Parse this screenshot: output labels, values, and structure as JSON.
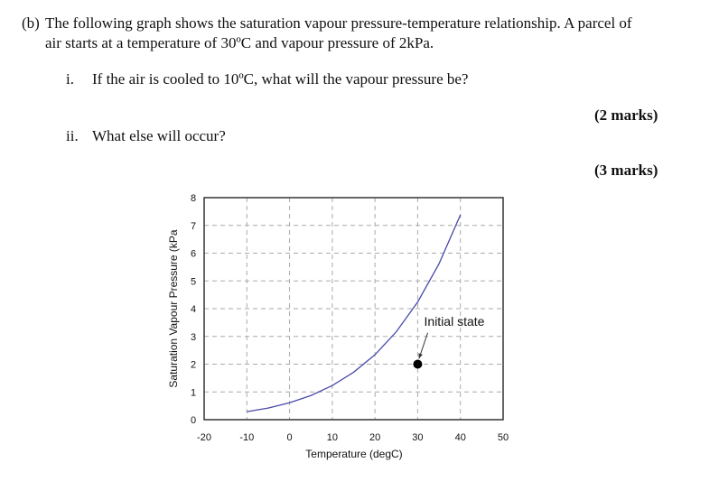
{
  "question": {
    "part_label": "(b)",
    "intro_line1": "The following graph shows the saturation vapour pressure-temperature relationship.  A parcel of",
    "intro_line2": "air starts at a temperature of 30ºC and vapour pressure of 2kPa.",
    "sub_questions": [
      {
        "label": "i.",
        "text": "If the air is cooled to 10ºC, what will the vapour pressure be?",
        "marks": "(2 marks)"
      },
      {
        "label": "ii.",
        "text": "What else will occur?",
        "marks": "(3 marks)"
      }
    ]
  },
  "chart_data": {
    "type": "line",
    "title": "",
    "xlabel": "Temperature (degC)",
    "ylabel": "Saturation Vapour Pressure (kPa",
    "xlim": [
      -20,
      50
    ],
    "ylim": [
      0,
      8
    ],
    "x_ticks": [
      "-20",
      "-10",
      "0",
      "10",
      "20",
      "30",
      "40",
      "50"
    ],
    "y_ticks": [
      "0",
      "1",
      "2",
      "3",
      "4",
      "5",
      "6",
      "7",
      "8"
    ],
    "grid": true,
    "series": [
      {
        "name": "Saturation vapour pressure",
        "color": "#4a4aa8",
        "x": [
          -10,
          -5,
          0,
          5,
          10,
          15,
          20,
          25,
          30,
          35,
          40
        ],
        "y": [
          0.29,
          0.42,
          0.61,
          0.87,
          1.23,
          1.71,
          2.34,
          3.17,
          4.24,
          5.62,
          7.38
        ]
      }
    ],
    "points": [
      {
        "name": "Initial state",
        "x": 30,
        "y": 2,
        "color": "#000000"
      }
    ],
    "annotations": [
      {
        "text": "Initial state",
        "x": 31.5,
        "y": 3.0,
        "arrow_to": [
          30.3,
          2.2
        ]
      }
    ]
  }
}
